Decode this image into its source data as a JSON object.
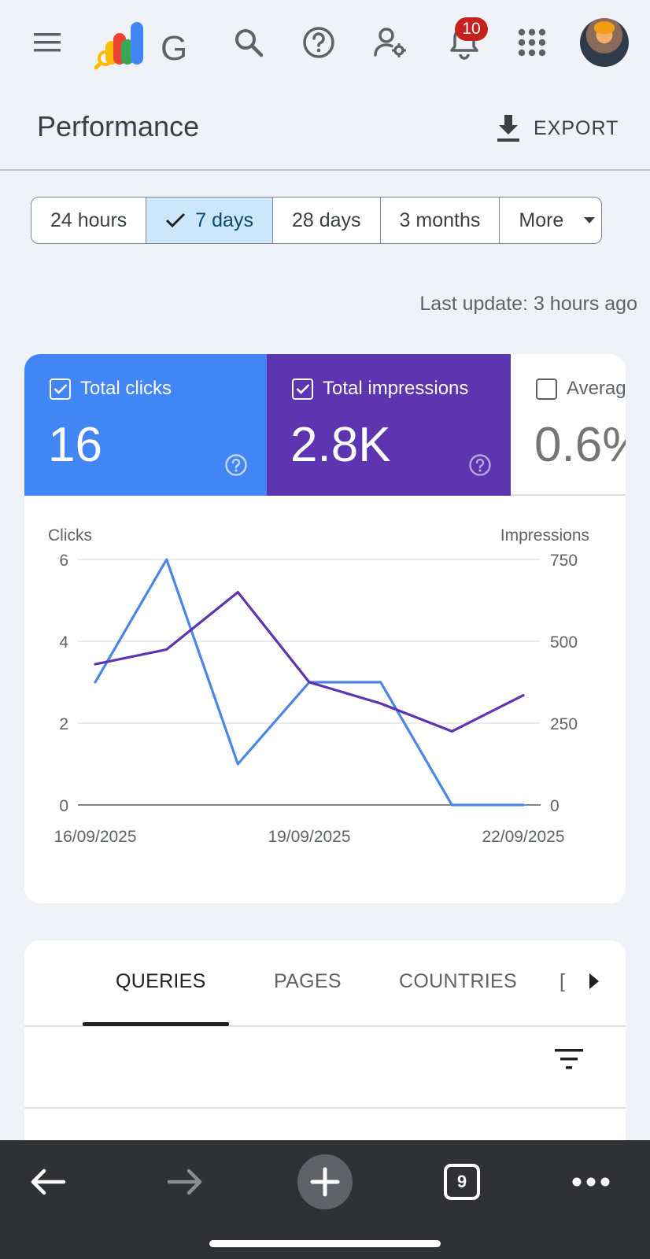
{
  "topbar": {
    "app_name_fragment": "G",
    "notification_count": "10",
    "icons": [
      "menu-icon",
      "search-console-logo",
      "search-icon",
      "help-icon",
      "manage-users-icon",
      "notifications-icon",
      "apps-grid-icon",
      "avatar"
    ]
  },
  "header": {
    "title": "Performance",
    "export_label": "EXPORT"
  },
  "date_range": {
    "options": [
      "24 hours",
      "7 days",
      "28 days",
      "3 months",
      "More"
    ],
    "selected": "7 days"
  },
  "last_update": "Last update: 3 hours ago",
  "metrics": [
    {
      "label": "Total clicks",
      "value": "16",
      "checked": true,
      "color": "#4285f4"
    },
    {
      "label": "Total impressions",
      "value": "2.8K",
      "checked": true,
      "color": "#5e35b1"
    },
    {
      "label": "Averag",
      "value": "0.6%",
      "checked": false
    }
  ],
  "chart_data": {
    "type": "line",
    "x": [
      "16/09/2025",
      "17/09/2025",
      "18/09/2025",
      "19/09/2025",
      "20/09/2025",
      "21/09/2025",
      "22/09/2025"
    ],
    "x_tick_labels": [
      "16/09/2025",
      "19/09/2025",
      "22/09/2025"
    ],
    "series": [
      {
        "name": "Clicks",
        "axis": "left",
        "color": "#4a86e8",
        "values": [
          3,
          6,
          1,
          3,
          3,
          0,
          0
        ]
      },
      {
        "name": "Impressions",
        "axis": "right",
        "color": "#5e35b1",
        "values": [
          430,
          475,
          650,
          375,
          310,
          225,
          335
        ]
      }
    ],
    "y_left": {
      "label": "Clicks",
      "ticks": [
        "0",
        "2",
        "4",
        "6"
      ],
      "range": [
        0,
        6
      ]
    },
    "y_right": {
      "label": "Impressions",
      "ticks": [
        "0",
        "250",
        "500",
        "750"
      ],
      "range": [
        0,
        750
      ]
    },
    "grid": true
  },
  "report_tabs": {
    "items": [
      "QUERIES",
      "PAGES",
      "COUNTRIES"
    ],
    "overflow_fragment": "[",
    "active": "QUERIES"
  },
  "browser_bar": {
    "tab_count": "9"
  }
}
